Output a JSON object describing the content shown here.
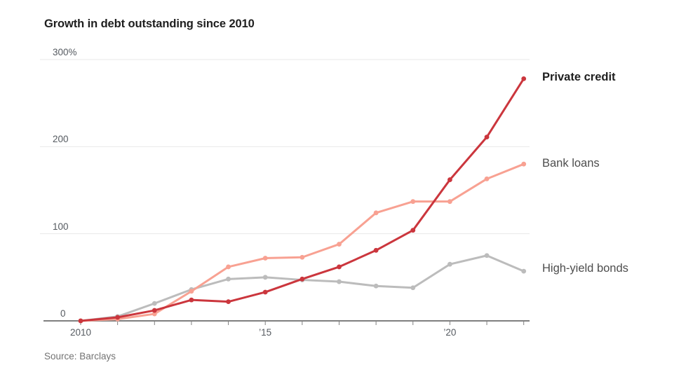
{
  "title": "Growth in debt outstanding since 2010",
  "source": "Source: Barclays",
  "colors": {
    "private_credit": "#cb363d",
    "bank_loans": "#f8a192",
    "high_yield_bonds": "#bcbcbc",
    "grid": "#e8e8e8",
    "axis": "#7f7f7f",
    "tick_label": "#555a60",
    "title_text": "#1e1e1e",
    "source_text": "#737373"
  },
  "chart_data": {
    "type": "line",
    "x": [
      2010,
      2011,
      2012,
      2013,
      2014,
      2015,
      2016,
      2017,
      2018,
      2019,
      2020,
      2021,
      2022
    ],
    "series": [
      {
        "name": "Private credit",
        "color": "#cb363d",
        "featured": true,
        "values": [
          0,
          4,
          12,
          24,
          22,
          33,
          48,
          62,
          81,
          104,
          162,
          211,
          278
        ]
      },
      {
        "name": "Bank loans",
        "color": "#f8a192",
        "featured": false,
        "values": [
          0,
          2,
          8,
          34,
          62,
          72,
          73,
          88,
          124,
          137,
          137,
          163,
          180
        ]
      },
      {
        "name": "High-yield bonds",
        "color": "#bcbcbc",
        "featured": false,
        "values": [
          0,
          5,
          20,
          36,
          48,
          50,
          47,
          45,
          40,
          38,
          65,
          75,
          57
        ]
      }
    ],
    "ylim": [
      0,
      300
    ],
    "yticks": [
      {
        "value": 300,
        "label": "300%"
      },
      {
        "value": 200,
        "label": "200"
      },
      {
        "value": 100,
        "label": "100"
      },
      {
        "value": 0,
        "label": "0"
      }
    ],
    "xticks": [
      {
        "value": 2010,
        "label": "2010"
      },
      {
        "value": 2015,
        "label": "’15"
      },
      {
        "value": 2020,
        "label": "’20"
      }
    ],
    "grid": "horizontal",
    "legend_position": "right of line ends",
    "units": "percent"
  }
}
